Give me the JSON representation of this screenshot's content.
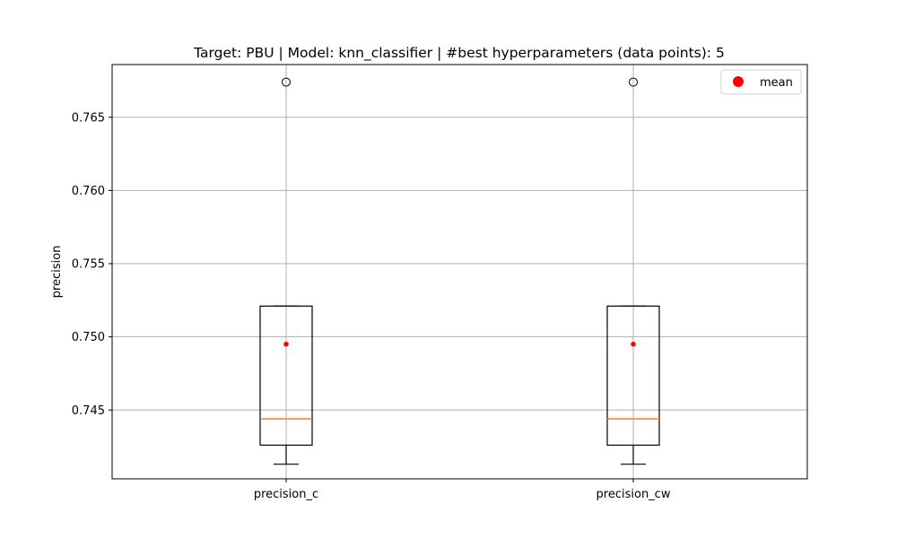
{
  "chart_data": {
    "type": "box",
    "title": "Target: PBU | Model: knn_classifier | #best hyperparameters (data points): 5",
    "xlabel": "",
    "ylabel": "precision",
    "ylim": [
      0.7403,
      0.7686
    ],
    "yticks": [
      "0.745",
      "0.750",
      "0.755",
      "0.760",
      "0.765"
    ],
    "ytick_values": [
      0.745,
      0.75,
      0.755,
      0.76,
      0.765
    ],
    "grid": true,
    "legend": {
      "position": "top-right",
      "entries": [
        "mean"
      ]
    },
    "categories": [
      "precision_c",
      "precision_cw"
    ],
    "boxes": [
      {
        "name": "precision_c",
        "whisker_low": 0.7413,
        "q1": 0.7426,
        "median": 0.7444,
        "q3": 0.7521,
        "whisker_high": 0.7521,
        "mean": 0.7495,
        "outliers": [
          0.7674
        ]
      },
      {
        "name": "precision_cw",
        "whisker_low": 0.7413,
        "q1": 0.7426,
        "median": 0.7444,
        "q3": 0.7521,
        "whisker_high": 0.7521,
        "mean": 0.7495,
        "outliers": [
          0.7674
        ]
      }
    ],
    "colors": {
      "box": "#000000",
      "median": "#ff7f0e",
      "mean": "#ff0000",
      "grid": "#b0b0b0"
    }
  }
}
